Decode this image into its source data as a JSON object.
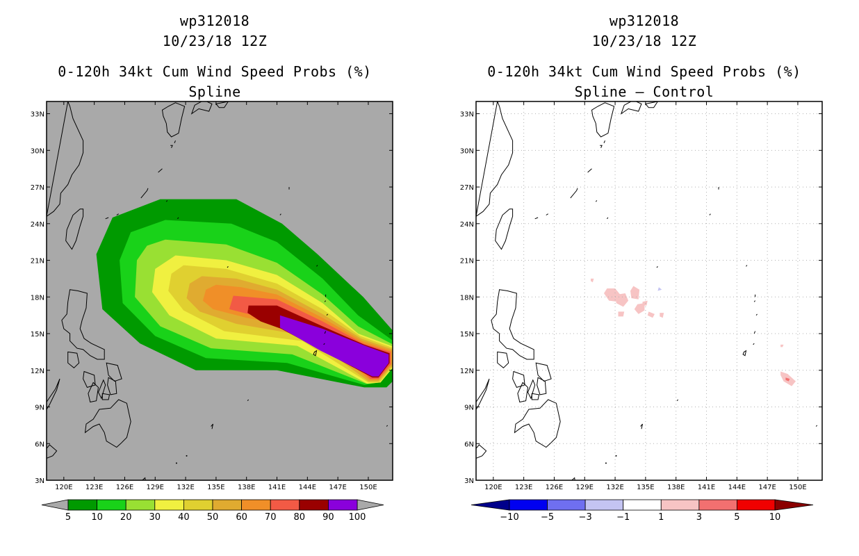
{
  "chart_data": [
    {
      "type": "heatmap",
      "subtype": "filled-contour-map",
      "title_lines": [
        "wp312018",
        "10/23/18 12Z",
        "0-120h 34kt Cum Wind Speed Probs (%)",
        "Spline"
      ],
      "x_ticks": [
        "120E",
        "123E",
        "126E",
        "129E",
        "132E",
        "135E",
        "138E",
        "141E",
        "144E",
        "147E",
        "150E"
      ],
      "y_ticks": [
        "3N",
        "6N",
        "9N",
        "12N",
        "15N",
        "18N",
        "21N",
        "24N",
        "27N",
        "30N",
        "33N"
      ],
      "xlim": [
        118.3,
        152.4
      ],
      "ylim": [
        3,
        34
      ],
      "background_color": "#a9a9a9",
      "colorbar": {
        "labels": [
          "5",
          "10",
          "20",
          "30",
          "40",
          "50",
          "60",
          "70",
          "80",
          "90",
          "100"
        ],
        "colors": [
          "#009a00",
          "#19d219",
          "#99e033",
          "#f0f040",
          "#e0d030",
          "#e0ab30",
          "#f08f28",
          "#f25a45",
          "#9a0000",
          "#8a00dc"
        ]
      },
      "levels": [
        {
          "min": 5,
          "color": "#009a00",
          "polygon": [
            [
              129.5,
              26
            ],
            [
              137,
              26
            ],
            [
              141.5,
              24
            ],
            [
              145,
              21.5
            ],
            [
              149.5,
              18
            ],
            [
              153.2,
              14.5
            ],
            [
              153.5,
              12
            ],
            [
              151.8,
              10.6
            ],
            [
              149.6,
              10.6
            ],
            [
              141,
              12
            ],
            [
              133,
              12
            ],
            [
              127.5,
              14.2
            ],
            [
              123.8,
              17
            ],
            [
              123.2,
              21.5
            ],
            [
              124.8,
              24.5
            ]
          ]
        },
        {
          "min": 10,
          "color": "#19d219",
          "polygon": [
            [
              130,
              24.3
            ],
            [
              136.5,
              24
            ],
            [
              141,
              22.5
            ],
            [
              145.5,
              19.5
            ],
            [
              149,
              16.5
            ],
            [
              152.8,
              14.2
            ],
            [
              152.8,
              12.5
            ],
            [
              151,
              11
            ],
            [
              149.6,
              10.8
            ],
            [
              142,
              12.6
            ],
            [
              134,
              13
            ],
            [
              129,
              14.8
            ],
            [
              125.8,
              17.5
            ],
            [
              125.5,
              21
            ],
            [
              126.6,
              23.3
            ]
          ]
        },
        {
          "min": 20,
          "color": "#99e033",
          "polygon": [
            [
              130,
              22.7
            ],
            [
              136,
              22.3
            ],
            [
              141,
              20.8
            ],
            [
              145.5,
              18.2
            ],
            [
              149,
              15.6
            ],
            [
              152.7,
              14
            ],
            [
              152.7,
              12.5
            ],
            [
              151.2,
              11
            ],
            [
              149.8,
              10.9
            ],
            [
              142.5,
              13.3
            ],
            [
              134.5,
              13.8
            ],
            [
              129.5,
              15.6
            ],
            [
              127,
              18
            ],
            [
              127.2,
              21
            ],
            [
              128.2,
              22.2
            ]
          ]
        },
        {
          "min": 30,
          "color": "#f0f040",
          "polygon": [
            [
              131,
              21.4
            ],
            [
              136,
              21
            ],
            [
              141,
              19.8
            ],
            [
              145.5,
              17.5
            ],
            [
              149,
              15
            ],
            [
              152.6,
              13.9
            ],
            [
              152.6,
              12.4
            ],
            [
              151.2,
              11
            ],
            [
              149.9,
              10.9
            ],
            [
              143,
              14
            ],
            [
              135,
              14.6
            ],
            [
              130.4,
              16.5
            ],
            [
              128.7,
              18.4
            ],
            [
              129,
              20.3
            ]
          ]
        },
        {
          "min": 40,
          "color": "#e0d030",
          "polygon": [
            [
              131.8,
              20.6
            ],
            [
              136,
              20.3
            ],
            [
              141,
              19.1
            ],
            [
              145.5,
              17
            ],
            [
              149.2,
              14.8
            ],
            [
              152.5,
              13.8
            ],
            [
              152.5,
              12.4
            ],
            [
              151.1,
              11
            ],
            [
              150,
              11
            ],
            [
              143.5,
              14.4
            ],
            [
              135.8,
              15.2
            ],
            [
              131.8,
              16.9
            ],
            [
              130.3,
              18.5
            ],
            [
              130.6,
              19.9
            ]
          ]
        },
        {
          "min": 50,
          "color": "#e0ab30",
          "polygon": [
            [
              133.6,
              19.7
            ],
            [
              137,
              19.5
            ],
            [
              141,
              18.6
            ],
            [
              145.5,
              16.6
            ],
            [
              149.3,
              14.6
            ],
            [
              152.4,
              13.7
            ],
            [
              152.4,
              12.4
            ],
            [
              151,
              11.1
            ],
            [
              150,
              11.1
            ],
            [
              144,
              14.8
            ],
            [
              137,
              15.8
            ],
            [
              133.4,
              16.8
            ],
            [
              132.1,
              17.9
            ],
            [
              132.4,
              19.1
            ]
          ]
        },
        {
          "min": 60,
          "color": "#f08f28",
          "polygon": [
            [
              135,
              19
            ],
            [
              137.5,
              18.8
            ],
            [
              141,
              18.2
            ],
            [
              145.5,
              16.3
            ],
            [
              149.4,
              14.4
            ],
            [
              152.3,
              13.6
            ],
            [
              152.3,
              12.5
            ],
            [
              151,
              11.2
            ],
            [
              150.1,
              11.2
            ],
            [
              144.5,
              15.2
            ],
            [
              138,
              16.3
            ],
            [
              134.7,
              17
            ],
            [
              133.7,
              17.7
            ],
            [
              134,
              18.6
            ]
          ]
        },
        {
          "min": 70,
          "color": "#f25a45",
          "polygon": [
            [
              136.7,
              18.1
            ],
            [
              141,
              17.8
            ],
            [
              145.5,
              16
            ],
            [
              149.5,
              14.2
            ],
            [
              152.2,
              13.5
            ],
            [
              152.2,
              12.5
            ],
            [
              151,
              11.3
            ],
            [
              150.2,
              11.3
            ],
            [
              145,
              15.5
            ],
            [
              138.7,
              16.5
            ],
            [
              136.3,
              17
            ]
          ]
        },
        {
          "min": 80,
          "color": "#9a0000",
          "polygon": [
            [
              138.2,
              17.3
            ],
            [
              141,
              17.3
            ],
            [
              145.5,
              15.6
            ],
            [
              149.6,
              14.1
            ],
            [
              152.1,
              13.4
            ],
            [
              152.1,
              12.6
            ],
            [
              151,
              11.4
            ],
            [
              150.4,
              11.4
            ],
            [
              141.4,
              15.4
            ],
            [
              139.4,
              16
            ],
            [
              138.1,
              16.7
            ]
          ]
        },
        {
          "min": 90,
          "color": "#8a00dc",
          "polygon": [
            [
              141.3,
              16.5
            ],
            [
              145.5,
              15.4
            ],
            [
              149.7,
              14
            ],
            [
              152,
              13.3
            ],
            [
              152,
              12.6
            ],
            [
              151,
              11.5
            ],
            [
              150.4,
              11.5
            ],
            [
              145.3,
              13.6
            ],
            [
              141.3,
              15.5
            ]
          ]
        }
      ]
    },
    {
      "type": "heatmap",
      "subtype": "filled-contour-map",
      "title_lines": [
        "wp312018",
        "10/23/18 12Z",
        "0-120h 34kt Cum Wind Speed Probs (%)",
        "Spline – Control"
      ],
      "x_ticks": [
        "120E",
        "123E",
        "126E",
        "129E",
        "132E",
        "135E",
        "138E",
        "141E",
        "144E",
        "147E",
        "150E"
      ],
      "y_ticks": [
        "3N",
        "6N",
        "9N",
        "12N",
        "15N",
        "18N",
        "21N",
        "24N",
        "27N",
        "30N",
        "33N"
      ],
      "xlim": [
        118.3,
        152.4
      ],
      "ylim": [
        3,
        34
      ],
      "background_color": "#ffffff",
      "colorbar": {
        "labels": [
          "−10",
          "−5",
          "−3",
          "−1",
          "1",
          "3",
          "5",
          "10"
        ],
        "colors": [
          "#00008b",
          "#0000f0",
          "#6f6ff0",
          "#c4c4f2",
          "#ffffff",
          "#f7c4c4",
          "#f27070",
          "#f00000",
          "#8b0000"
        ]
      },
      "blobs": [
        {
          "color": "#f7c4c4",
          "polygon": [
            [
              131.2,
              18.7
            ],
            [
              132,
              18.7
            ],
            [
              132.6,
              18.1
            ],
            [
              132.3,
              17.6
            ],
            [
              131.4,
              17.7
            ],
            [
              130.9,
              18.3
            ]
          ]
        },
        {
          "color": "#f7c4c4",
          "polygon": [
            [
              132.2,
              18.2
            ],
            [
              133,
              18.3
            ],
            [
              133.3,
              17.7
            ],
            [
              132.8,
              17.2
            ],
            [
              132.1,
              17.5
            ]
          ]
        },
        {
          "color": "#f7c4c4",
          "polygon": [
            [
              133.8,
              18.9
            ],
            [
              134.4,
              18.6
            ],
            [
              134.3,
              17.8
            ],
            [
              133.6,
              17.9
            ],
            [
              133.5,
              18.5
            ]
          ]
        },
        {
          "color": "#f7c4c4",
          "polygon": [
            [
              134.2,
              17.4
            ],
            [
              134.9,
              17.5
            ],
            [
              134.9,
              16.9
            ],
            [
              134.3,
              16.6
            ],
            [
              133.9,
              17
            ]
          ]
        },
        {
          "color": "#f7c4c4",
          "polygon": [
            [
              135.3,
              16.8
            ],
            [
              135.9,
              16.6
            ],
            [
              135.7,
              16.3
            ],
            [
              135.2,
              16.5
            ]
          ]
        },
        {
          "color": "#f7c4c4",
          "polygon": [
            [
              134.7,
              17.6
            ],
            [
              135.2,
              17.7
            ],
            [
              135.1,
              17.3
            ],
            [
              134.7,
              17.3
            ]
          ]
        },
        {
          "color": "#f7c4c4",
          "polygon": [
            [
              132.3,
              16.8
            ],
            [
              132.9,
              16.8
            ],
            [
              132.8,
              16.4
            ],
            [
              132.3,
              16.4
            ]
          ]
        },
        {
          "color": "#f7c4c4",
          "polygon": [
            [
              136.4,
              16.7
            ],
            [
              136.8,
              16.7
            ],
            [
              136.7,
              16.3
            ],
            [
              136.4,
              16.4
            ]
          ]
        },
        {
          "color": "#f7c4c4",
          "polygon": [
            [
              129.6,
              19.5
            ],
            [
              129.9,
              19.5
            ],
            [
              129.8,
              19.2
            ],
            [
              129.6,
              19.3
            ]
          ]
        },
        {
          "color": "#f7c4c4",
          "polygon": [
            [
              148.3,
              11.9
            ],
            [
              149,
              11.7
            ],
            [
              149.8,
              11.1
            ],
            [
              149.4,
              10.7
            ],
            [
              148.6,
              11.1
            ],
            [
              148.3,
              11.6
            ]
          ]
        },
        {
          "color": "#f27070",
          "polygon": [
            [
              148.8,
              11.4
            ],
            [
              149.2,
              11.3
            ],
            [
              149.1,
              11.1
            ],
            [
              148.8,
              11.2
            ]
          ]
        },
        {
          "color": "#f7c4c4",
          "polygon": [
            [
              148.3,
              14.1
            ],
            [
              148.6,
              14.1
            ],
            [
              148.5,
              13.9
            ],
            [
              148.3,
              13.9
            ]
          ]
        },
        {
          "color": "#c4c4f2",
          "polygon": [
            [
              136.3,
              18.8
            ],
            [
              136.6,
              18.6
            ],
            [
              136.2,
              18.5
            ]
          ]
        }
      ]
    }
  ]
}
